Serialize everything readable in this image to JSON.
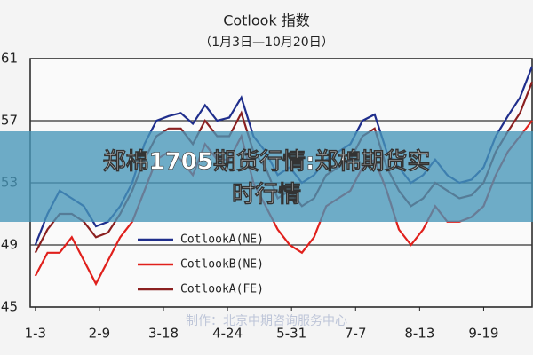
{
  "chart_data": {
    "type": "line",
    "title": "Cotlook 指数",
    "subtitle": "（1月3日—10月20日）",
    "annotation": "制作：北京中期咨询服务中心",
    "x": [
      3,
      10,
      17,
      24,
      31,
      38,
      45,
      52,
      59,
      66,
      73,
      80,
      87,
      94,
      101,
      108,
      115,
      122,
      129,
      136,
      143,
      150,
      157,
      164,
      171,
      178,
      185,
      192,
      199,
      206,
      213,
      220,
      227,
      234,
      241,
      248,
      255,
      262,
      269,
      276,
      283,
      290
    ],
    "series": [
      {
        "name": "CotlookA(NE)",
        "color": "#1f2e8c",
        "values": [
          49,
          51,
          52.5,
          52,
          51.5,
          50.2,
          50.5,
          51.5,
          53,
          55.5,
          57,
          57.3,
          57.5,
          56.8,
          58,
          57,
          57.2,
          58.5,
          56,
          55,
          53.5,
          54,
          53,
          53.5,
          54.5,
          55,
          55.5,
          57,
          57.4,
          55,
          54,
          53,
          53.5,
          54.5,
          53.5,
          53,
          53.2,
          54,
          56,
          57.3,
          58.5,
          60.5
        ]
      },
      {
        "name": "CotlookB(NE)",
        "color": "#e0201c",
        "values": [
          47,
          48.5,
          48.5,
          49.5,
          48,
          46.5,
          48,
          49.5,
          50.5,
          52.5,
          54.5,
          55,
          54.5,
          53.5,
          55.5,
          54.5,
          54.5,
          56,
          53,
          51.5,
          50,
          49,
          48.5,
          49.5,
          51.5,
          52,
          52.5,
          54,
          54.5,
          52.5,
          50,
          49,
          50,
          51.5,
          50.5,
          50.5,
          50.8,
          51.5,
          53.5,
          55,
          56,
          57
        ]
      },
      {
        "name": "CotlookA(FE)",
        "color": "#8b2020",
        "values": [
          48.5,
          50,
          51,
          51,
          50.5,
          49.5,
          49.8,
          51,
          52.5,
          54.5,
          56,
          56.5,
          56.5,
          55.5,
          57,
          56,
          56,
          57.5,
          55,
          54,
          52,
          52.5,
          51.5,
          52,
          53.5,
          54,
          54.5,
          56,
          56.5,
          54,
          52.5,
          51.5,
          52,
          53,
          52.5,
          52,
          52.2,
          53,
          55,
          56.3,
          57.5,
          59.5
        ]
      }
    ],
    "xlim": [
      0,
      290
    ],
    "xticks": [
      {
        "value": 3,
        "label": "1-3"
      },
      {
        "value": 40,
        "label": "2-9"
      },
      {
        "value": 77,
        "label": "3-18"
      },
      {
        "value": 114,
        "label": "4-24"
      },
      {
        "value": 151,
        "label": "5-31"
      },
      {
        "value": 188,
        "label": "7-7"
      },
      {
        "value": 225,
        "label": "8-13"
      },
      {
        "value": 262,
        "label": "9-19"
      }
    ],
    "ylim": [
      45,
      61
    ],
    "yticks": [
      45,
      49,
      53,
      57,
      61
    ],
    "grid": true
  },
  "banner": {
    "lines": [
      "郑棉1705期货行情:郑棉期货实",
      "时行情"
    ]
  }
}
